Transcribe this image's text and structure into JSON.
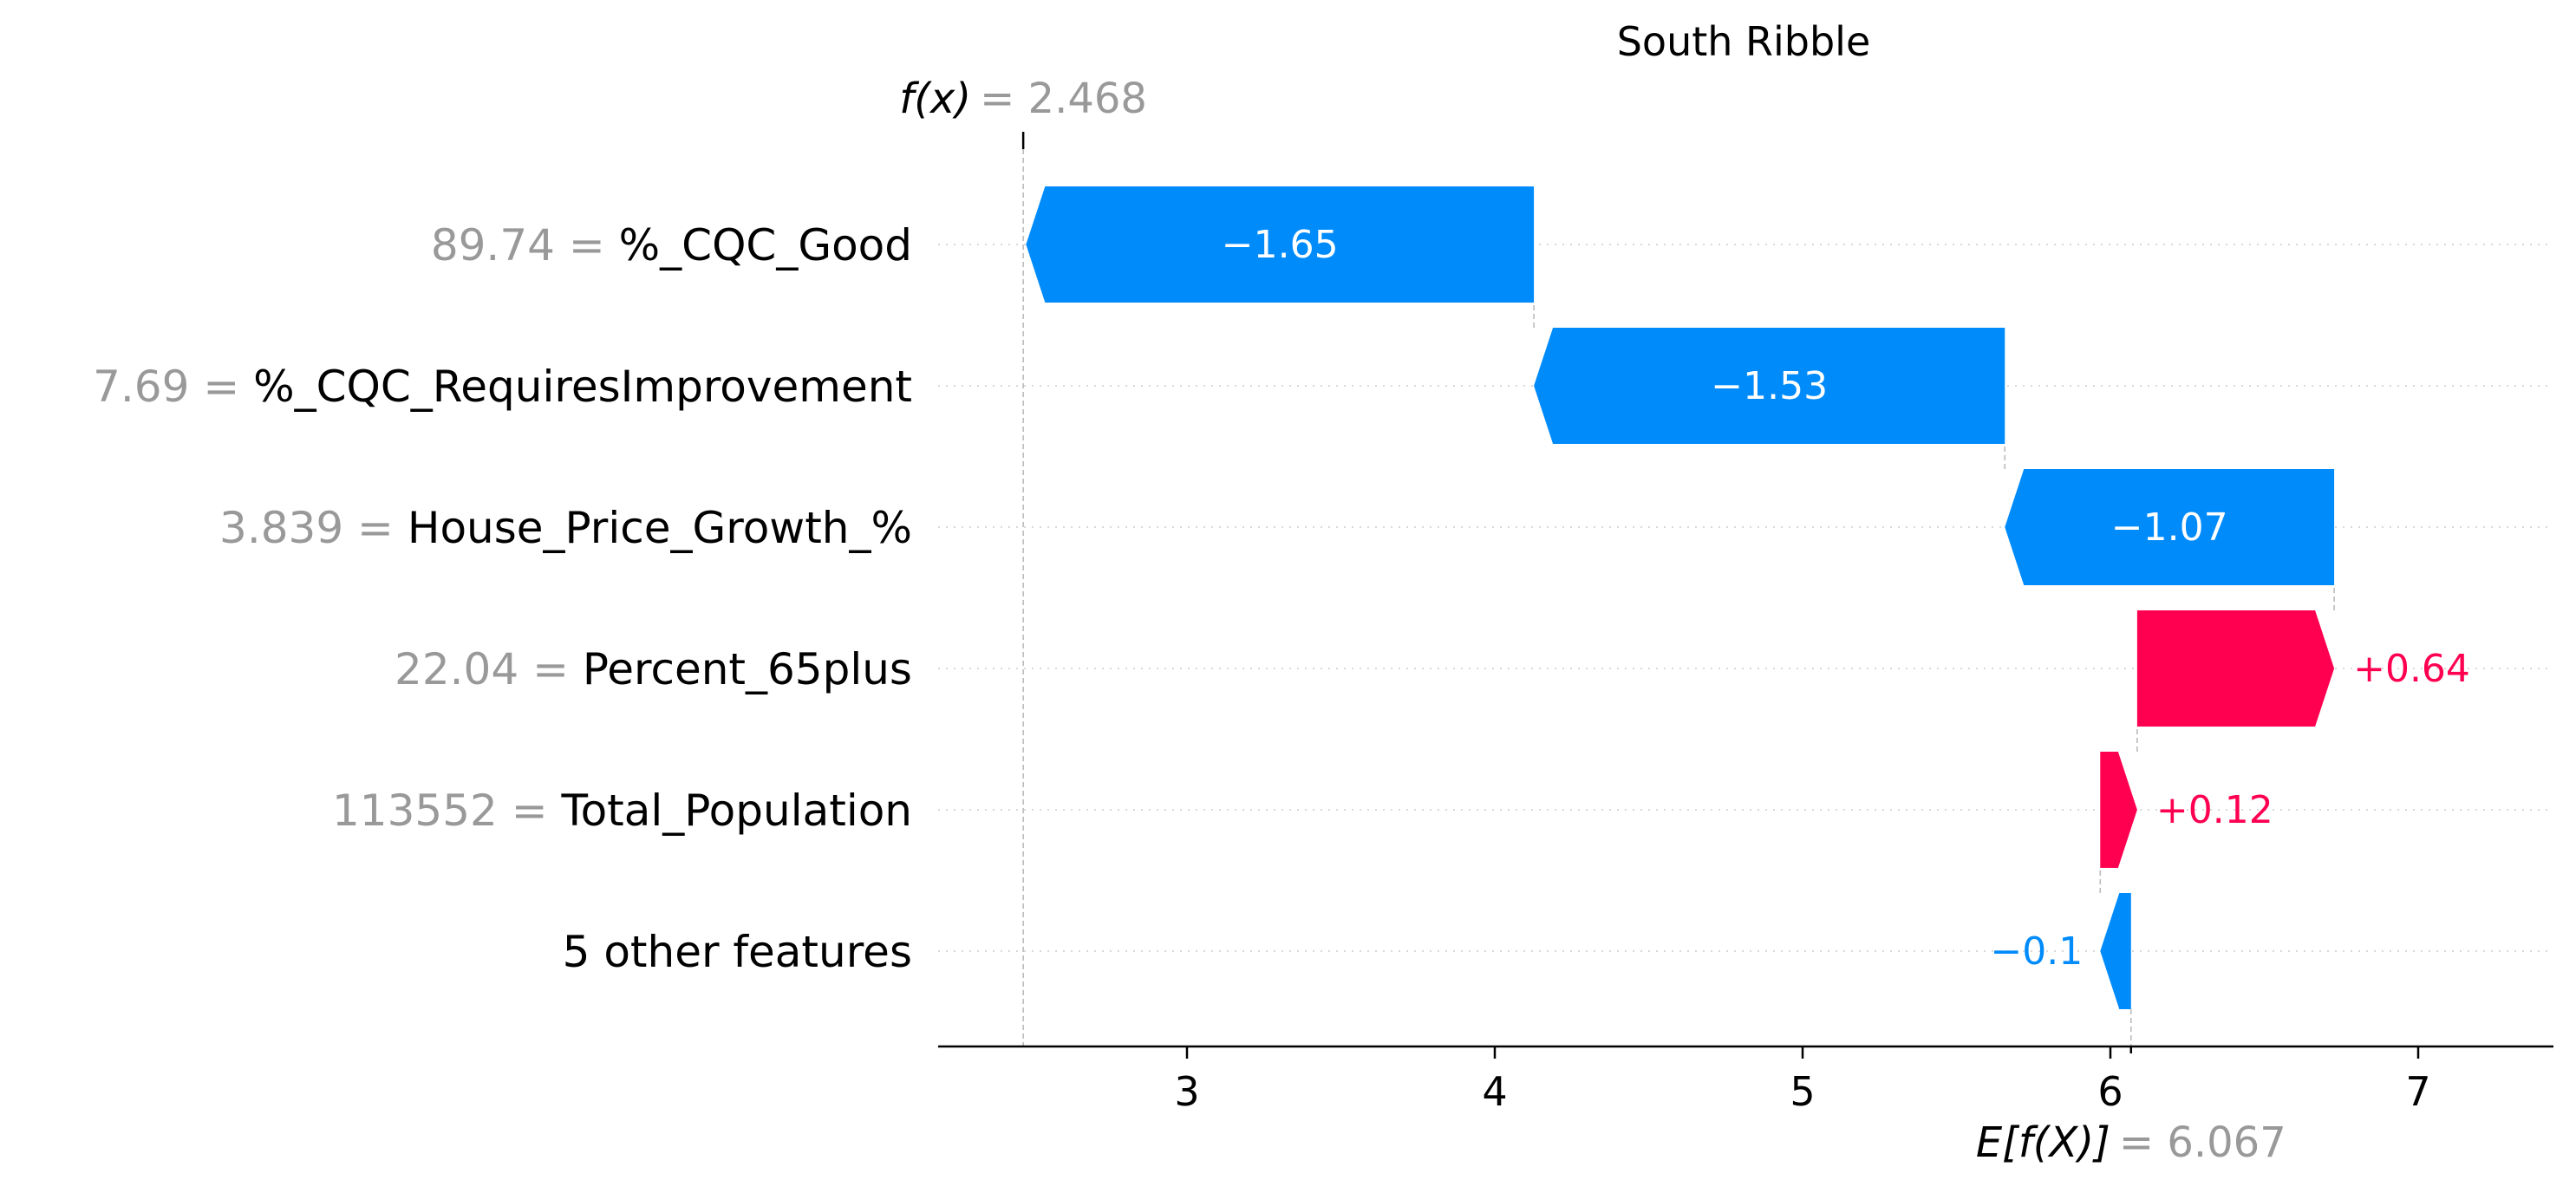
{
  "chart_data": {
    "type": "waterfall",
    "title": "South Ribble",
    "base_value": 6.067,
    "output_value": 2.468,
    "output_label": {
      "symbol": "f(x)",
      "equals": "= ",
      "value_text": "2.468"
    },
    "base_label": {
      "symbol": "E[f(X)]",
      "equals": "= ",
      "value_text": "6.067"
    },
    "xlim": [
      2.2,
      7.45
    ],
    "xticks": [
      3,
      4,
      5,
      6,
      7
    ],
    "features": [
      {
        "value_text": "89.74",
        "eq": " = ",
        "name": "%_CQC_Good",
        "contribution": -1.65,
        "label": "−1.65"
      },
      {
        "value_text": "7.69",
        "eq": " = ",
        "name": "%_CQC_RequiresImprovement",
        "contribution": -1.53,
        "label": "−1.53"
      },
      {
        "value_text": "3.839",
        "eq": " = ",
        "name": "House_Price_Growth_%",
        "contribution": -1.07,
        "label": "−1.07"
      },
      {
        "value_text": "22.04",
        "eq": " = ",
        "name": "Percent_65plus",
        "contribution": 0.64,
        "label": "+0.64"
      },
      {
        "value_text": "113552",
        "eq": " = ",
        "name": "Total_Population",
        "contribution": 0.12,
        "label": "+0.12"
      },
      {
        "value_text": "",
        "eq": "",
        "name": "5 other features",
        "contribution": -0.1,
        "label": "−0.1"
      }
    ],
    "colors": {
      "negative": "#008bfb",
      "positive": "#ff0051",
      "value_text": "#999999"
    }
  }
}
